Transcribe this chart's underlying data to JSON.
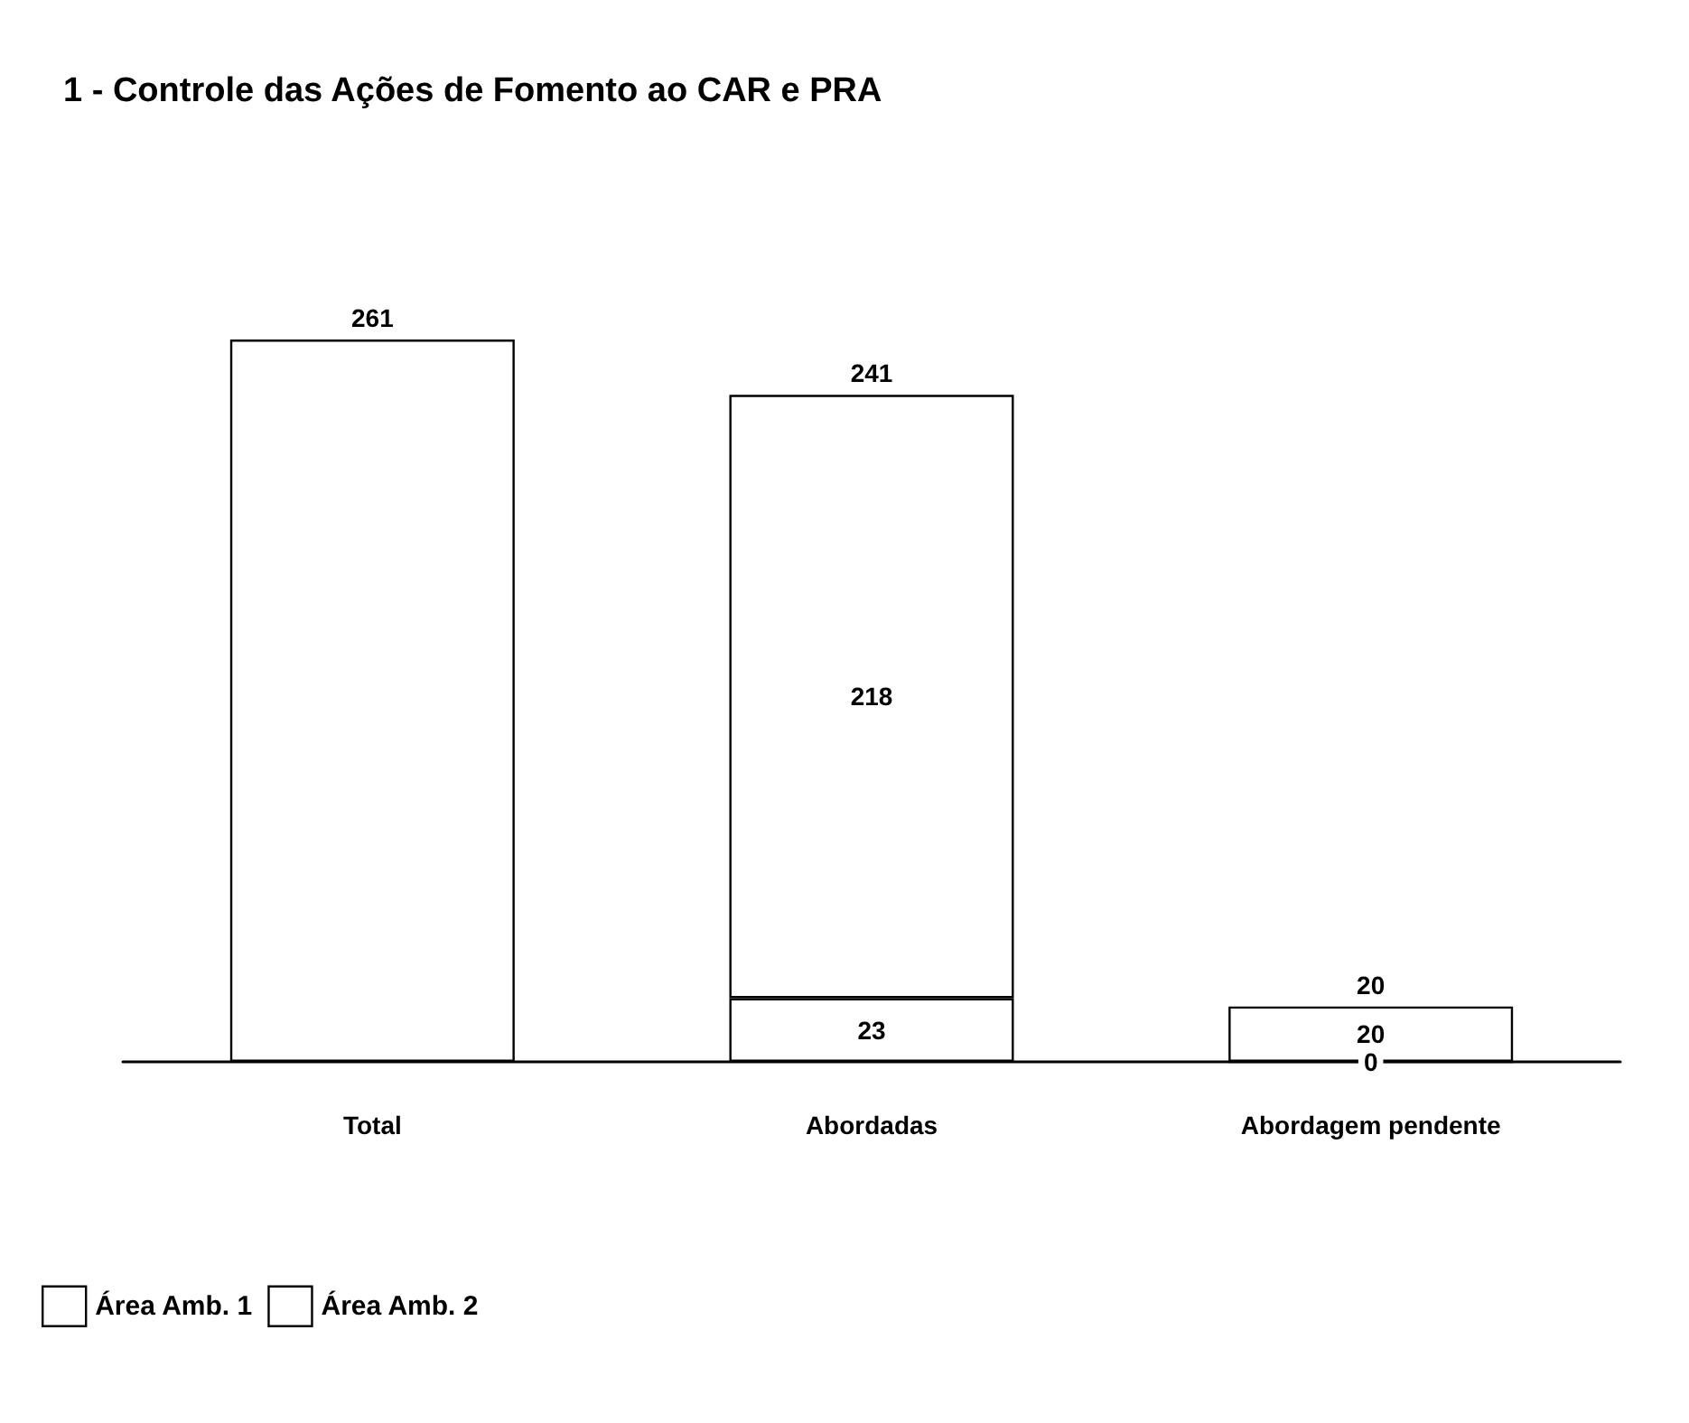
{
  "chart_data": {
    "type": "bar",
    "title": "1 - Controle das Ações de Fomento ao CAR e PRA",
    "categories": [
      "Total",
      "Abordadas",
      "Abordagem pendente"
    ],
    "stacked": true,
    "series": [
      {
        "color": "#ffffff",
        "values": [
          261,
          null,
          null
        ]
      },
      {
        "name": "Área Amb. 1",
        "color": "#ffffff",
        "values": [
          null,
          23,
          0
        ],
        "value_labels": [
          null,
          "23",
          "0"
        ]
      },
      {
        "name": "Área Amb. 2",
        "color": "#ffffff",
        "values": [
          null,
          218,
          20
        ],
        "value_labels": [
          null,
          "218",
          "20"
        ]
      }
    ],
    "totals": [
      "261",
      "241",
      "20"
    ],
    "legend": "bottom left"
  }
}
